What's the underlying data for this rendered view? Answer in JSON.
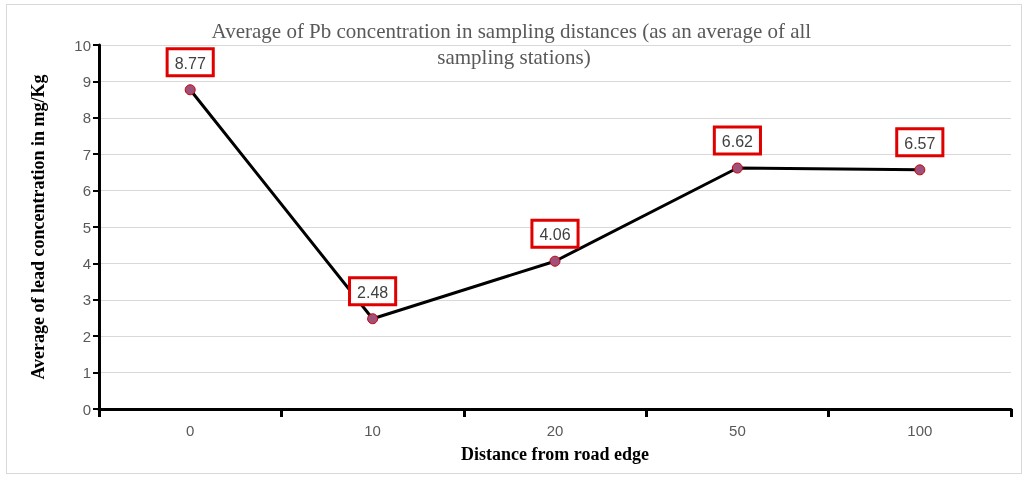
{
  "chart_data": {
    "type": "line",
    "title": "Average of Pb concentration in sampling distances (as an average of all sampling stations)",
    "xlabel": "Distance from road edge",
    "ylabel": "Average of lead concentration in mg/Kg",
    "categories": [
      "0",
      "10",
      "20",
      "50",
      "100"
    ],
    "series": [
      {
        "color": "#000000",
        "colors": [
          "#a0507a",
          "#a0507a",
          "#a0507a",
          "#a0507a",
          "#a0507a"
        ],
        "values": [
          8.77,
          2.48,
          4.06,
          6.62,
          6.57
        ]
      }
    ],
    "ylim": [
      0,
      10
    ],
    "yticks": [
      0,
      1,
      2,
      3,
      4,
      5,
      6,
      7,
      8,
      9,
      10
    ],
    "grid": "y",
    "marker": "circle",
    "line_style": "solid",
    "data_labels": true
  }
}
